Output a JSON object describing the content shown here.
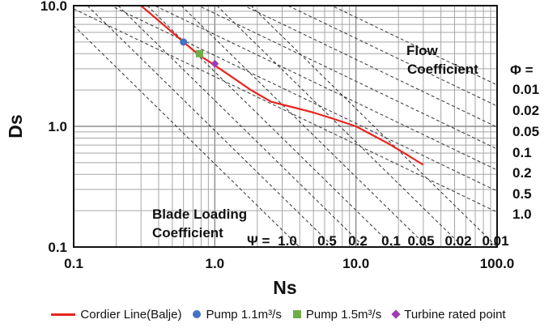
{
  "chart_data": {
    "type": "line",
    "x_scale": "log",
    "y_scale": "log",
    "xlim": [
      0.1,
      100
    ],
    "ylim": [
      0.1,
      10
    ],
    "xlabel": "Ns",
    "ylabel": "Ds",
    "x_ticks": [
      "0.1",
      "1.0",
      "10.0",
      "100.0"
    ],
    "y_ticks": [
      "10.0",
      "1.0",
      "0.1"
    ],
    "grid": true,
    "legend_position": "bottom",
    "series": [
      {
        "name": "Cordier Line(Balje)",
        "color": "#e8231f",
        "type": "line",
        "x": [
          0.3,
          0.4,
          0.5,
          0.6,
          0.7,
          0.8,
          1.0,
          1.3,
          1.8,
          2.5,
          3.5,
          5,
          7,
          10,
          13,
          17,
          22,
          30
        ],
        "y": [
          10.0,
          7.5,
          6.0,
          5.0,
          4.3,
          3.8,
          3.2,
          2.6,
          2.0,
          1.6,
          1.45,
          1.3,
          1.15,
          1.0,
          0.85,
          0.72,
          0.6,
          0.48
        ]
      },
      {
        "name": "Pump 1.1m³/s",
        "color": "#4472c4",
        "type": "scatter",
        "marker": "circle",
        "x": [
          0.6
        ],
        "y": [
          5.0
        ]
      },
      {
        "name": "Pump 1.5m³/s",
        "color": "#70ad47",
        "type": "scatter",
        "marker": "square",
        "x": [
          0.78
        ],
        "y": [
          4.0
        ]
      },
      {
        "name": "Turbine rated point",
        "color": "#9e3bb0",
        "type": "scatter",
        "marker": "diamond",
        "x": [
          1.0
        ],
        "y": [
          3.3
        ]
      }
    ],
    "flow_coefficient": {
      "title_line1": "Flow",
      "title_line2": "Coefficient",
      "symbol": "Φ =",
      "values": [
        "0.01",
        "0.02",
        "0.05",
        "0.1",
        "0.2",
        "0.5",
        "1.0"
      ]
    },
    "blade_loading_coefficient": {
      "title_line1": "Blade Loading",
      "title_line2": "Coefficient",
      "symbol": "Ψ =",
      "values": [
        "1.0",
        "0.5",
        "0.2",
        "0.1",
        "0.05",
        "0.02",
        "0.01"
      ]
    }
  }
}
